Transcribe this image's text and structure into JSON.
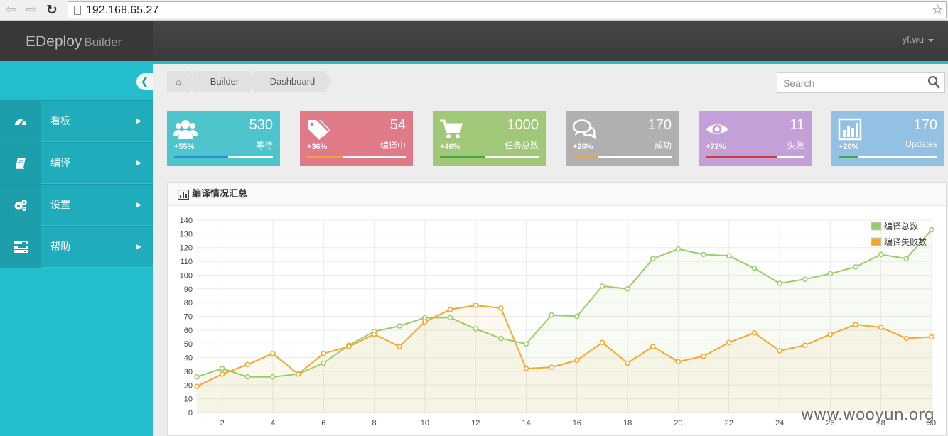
{
  "browser": {
    "back_glyph": "⇦",
    "forward_glyph": "⇨",
    "reload_glyph": "↻",
    "url": "192.168.65.27",
    "star_glyph": "☆"
  },
  "header": {
    "brand_main": "EDeploy",
    "brand_sub": "Builder",
    "user": "yf.wu"
  },
  "sidebar": {
    "collapse_glyph": "❮",
    "items": [
      {
        "label": "看板",
        "icon": "dashboard-icon",
        "glyph": "◔"
      },
      {
        "label": "编译",
        "icon": "book-icon",
        "glyph": "▤"
      },
      {
        "label": "设置",
        "icon": "gears-icon",
        "glyph": "✲"
      },
      {
        "label": "帮助",
        "icon": "tasks-icon",
        "glyph": "☰"
      }
    ],
    "arrow_glyph": "▶"
  },
  "breadcrumb": {
    "home_glyph": "⌂",
    "items": [
      "Builder",
      "Dashboard"
    ]
  },
  "search": {
    "placeholder": "Search"
  },
  "tiles": [
    {
      "value": "530",
      "pct": "+55%",
      "label": "等待",
      "icon": "users-icon",
      "bg": "#4ec4cd",
      "bar": "#2b8ed6",
      "progress": 55
    },
    {
      "value": "54",
      "pct": "+36%",
      "label": "编译中",
      "icon": "tags-icon",
      "bg": "#e07a88",
      "bar": "#f0a23a",
      "progress": 36
    },
    {
      "value": "1000",
      "pct": "+46%",
      "label": "任务总数",
      "icon": "cart-icon",
      "bg": "#a0c878",
      "bar": "#46a646",
      "progress": 46
    },
    {
      "value": "170",
      "pct": "+26%",
      "label": "成功",
      "icon": "comments-icon",
      "bg": "#b0b0b0",
      "bar": "#f0a23a",
      "progress": 26
    },
    {
      "value": "11",
      "pct": "+72%",
      "label": "失败",
      "icon": "eye-icon",
      "bg": "#c3a0d8",
      "bar": "#d53b3b",
      "progress": 72
    },
    {
      "value": "170",
      "pct": "+20%",
      "label": "Updates",
      "icon": "bar-chart-icon",
      "bg": "#92c1e3",
      "bar": "#46a646",
      "progress": 20
    }
  ],
  "panel": {
    "title": "编译情况汇总",
    "icon": "bar-chart-icon"
  },
  "chart_data": {
    "type": "line",
    "x": [
      1,
      2,
      3,
      4,
      5,
      6,
      7,
      8,
      9,
      10,
      11,
      12,
      13,
      14,
      15,
      16,
      17,
      18,
      19,
      20,
      21,
      22,
      23,
      24,
      25,
      26,
      27,
      28,
      29,
      30
    ],
    "xticks": [
      2,
      4,
      6,
      8,
      10,
      12,
      14,
      16,
      18,
      20,
      22,
      24,
      26,
      28,
      30
    ],
    "yticks": [
      0,
      10,
      20,
      30,
      40,
      50,
      60,
      70,
      80,
      90,
      100,
      110,
      120,
      130,
      140
    ],
    "xlim": [
      1,
      30
    ],
    "ylim": [
      0,
      140
    ],
    "grid": true,
    "legend_position": "top-right",
    "series": [
      {
        "name": "编译总数",
        "color": "#9acd6a",
        "values": [
          26,
          32,
          26,
          26,
          28,
          36,
          49,
          59,
          63,
          69,
          69,
          61,
          54,
          50,
          71,
          70,
          92,
          90,
          112,
          119,
          115,
          114,
          105,
          94,
          97,
          101,
          106,
          115,
          112,
          133
        ]
      },
      {
        "name": "编译失败数",
        "color": "#f0a830",
        "values": [
          19,
          28,
          35,
          43,
          28,
          43,
          48,
          57,
          48,
          66,
          75,
          78,
          76,
          32,
          33,
          38,
          51,
          36,
          48,
          37,
          41,
          51,
          58,
          45,
          49,
          57,
          64,
          62,
          54,
          55
        ]
      }
    ]
  },
  "watermark": "www.wooyun.org"
}
